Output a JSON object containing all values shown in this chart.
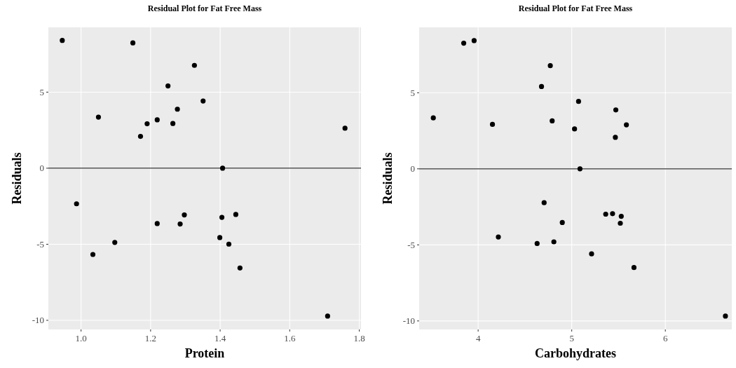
{
  "chart_data": [
    {
      "type": "scatter",
      "title": "Residual Plot for Fat Free Mass",
      "xlabel": "Protein",
      "ylabel": "Residuals",
      "color": "#000000",
      "marker": "circle",
      "grid": true,
      "x": [
        0.946,
        1.149,
        1.326,
        1.25,
        1.05,
        1.351,
        1.277,
        1.219,
        1.19,
        1.264,
        1.171,
        1.759,
        1.407,
        0.987,
        1.297,
        1.219,
        1.285,
        1.405,
        1.445,
        1.399,
        1.425,
        1.097,
        1.034,
        1.457,
        1.709
      ],
      "values": [
        8.4,
        8.24,
        6.76,
        5.41,
        3.36,
        4.42,
        3.88,
        3.18,
        2.92,
        2.94,
        2.09,
        2.63,
        0,
        -2.34,
        -3.07,
        -3.64,
        -3.67,
        -3.23,
        -3.04,
        -4.56,
        -4.99,
        -4.88,
        -5.67,
        -6.56,
        -9.72
      ],
      "xlim": [
        0.906,
        1.805
      ],
      "xticks": [
        {
          "value": 1,
          "label": "1.0"
        },
        1.2,
        1.4,
        1.6,
        1.8
      ],
      "ylim": [
        -10.6,
        9.26
      ],
      "yticks": [
        -10,
        -5,
        0,
        5
      ],
      "ref_lines": [
        {
          "axis": "y",
          "value": 0,
          "color": "#333333"
        }
      ]
    },
    {
      "type": "scatter",
      "title": "Residual Plot for Fat Free Mass",
      "xlabel": "Carbohydrates",
      "ylabel": "Residuals",
      "color": "#000000",
      "marker": "circle",
      "grid": true,
      "x": [
        3.957,
        3.846,
        4.771,
        4.677,
        3.521,
        5.073,
        5.471,
        4.791,
        4.153,
        5.584,
        5.03,
        5.466,
        5.088,
        4.705,
        5.363,
        5.436,
        5.529,
        5.519,
        4.899,
        4.216,
        4.63,
        4.809,
        5.212,
        5.665,
        6.642
      ],
      "values": [
        8.43,
        8.26,
        6.78,
        5.41,
        3.35,
        4.43,
        3.87,
        3.15,
        2.92,
        2.89,
        2.62,
        2.07,
        0,
        -2.23,
        -2.98,
        -2.95,
        -3.12,
        -3.58,
        -3.53,
        -4.48,
        -4.91,
        -4.8,
        -5.59,
        -6.49,
        -9.68
      ],
      "xlim": [
        3.37,
        6.71
      ],
      "xticks": [
        4,
        5,
        6
      ],
      "ylim": [
        -10.56,
        9.3
      ],
      "yticks": [
        -10,
        -5,
        0,
        5
      ],
      "ref_lines": [
        {
          "axis": "y",
          "value": 0,
          "color": "#333333"
        }
      ]
    }
  ]
}
